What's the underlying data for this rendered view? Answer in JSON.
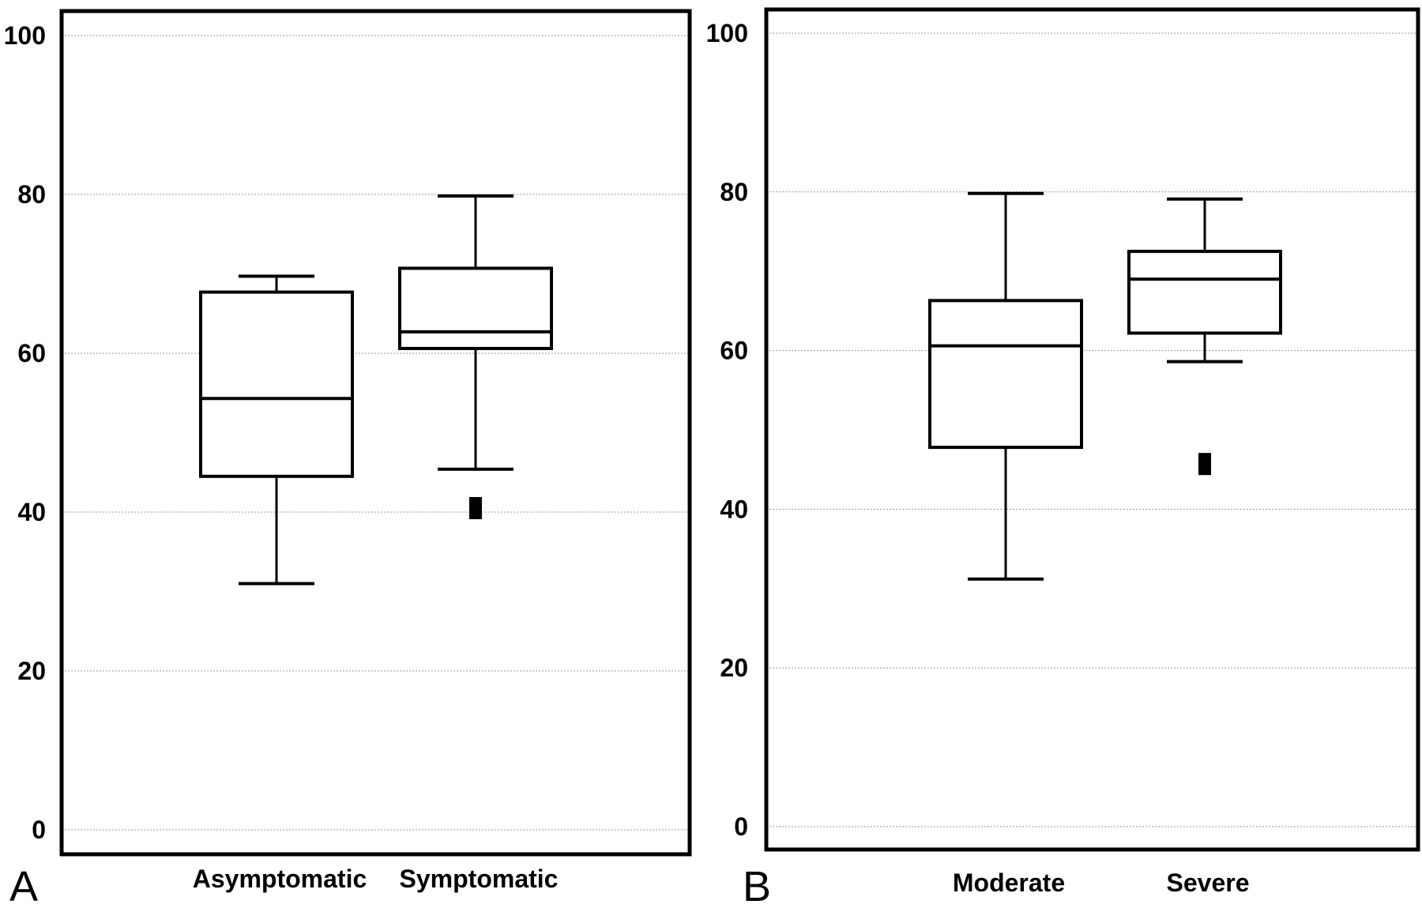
{
  "chart_data": [
    {
      "type": "box",
      "panel_label": "A",
      "categories": [
        "Asymptomatic",
        "Symptomatic"
      ],
      "yticks": [
        0,
        20,
        40,
        60,
        80,
        100
      ],
      "ylim": [
        -3,
        103
      ],
      "grid": true,
      "boxes": [
        {
          "category": "Asymptomatic",
          "min": 31,
          "q1": 44.5,
          "median": 54.3,
          "q3": 67.7,
          "max": 69.7,
          "outliers": []
        },
        {
          "category": "Symptomatic",
          "min": 45.4,
          "q1": 60.6,
          "median": 62.7,
          "q3": 70.7,
          "max": 79.8,
          "outliers": [
            40.5
          ]
        }
      ]
    },
    {
      "type": "box",
      "panel_label": "B",
      "categories": [
        "Moderate",
        "Severe"
      ],
      "yticks": [
        0,
        20,
        40,
        60,
        80,
        100
      ],
      "ylim": [
        -3,
        103
      ],
      "grid": true,
      "boxes": [
        {
          "category": "Moderate",
          "min": 31.2,
          "q1": 47.8,
          "median": 60.6,
          "q3": 66.3,
          "max": 79.8,
          "outliers": []
        },
        {
          "category": "Severe",
          "min": 58.6,
          "q1": 62.2,
          "median": 69.0,
          "q3": 72.5,
          "max": 79.1,
          "outliers": [
            45.7
          ]
        }
      ]
    }
  ]
}
